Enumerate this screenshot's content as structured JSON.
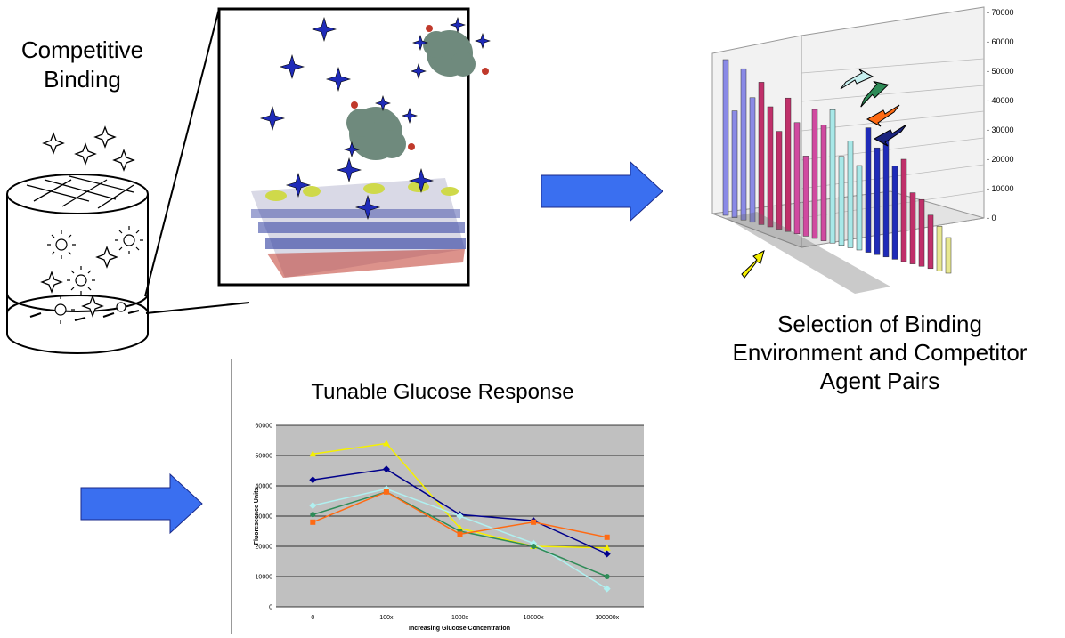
{
  "labels": {
    "competitive_binding": [
      "Competitive",
      "Binding"
    ],
    "selection": [
      "Selection of Binding",
      "Environment and Competitor",
      "Agent Pairs"
    ]
  },
  "colors": {
    "arrow_fill": "#3a6ff0",
    "chart_plot_bg": "#c0c0c0",
    "callout_arrows": [
      "#c8f0f0",
      "#2e8b57",
      "#ff6a13",
      "#1a237e",
      "#f5f000"
    ]
  },
  "icons": [
    "cylinder-well-icon",
    "star-particle-icon",
    "molecular-surface-image",
    "arrow-right-icon",
    "3d-bar-chart-image"
  ],
  "chart_data": [
    {
      "type": "line",
      "title": "Tunable Glucose Response",
      "xlabel": "Increasing Glucose Concentration",
      "ylabel": "Fluorescence Units",
      "categories": [
        "0",
        "100x",
        "1000x",
        "10000x",
        "100000x"
      ],
      "ylim": [
        0,
        60000
      ],
      "yticks": [
        0,
        10000,
        20000,
        30000,
        40000,
        50000,
        60000
      ],
      "grid": true,
      "series": [
        {
          "color": "#f5f000",
          "marker": "triangle",
          "values": [
            50500,
            54000,
            26000,
            20000,
            19500
          ]
        },
        {
          "color": "#00008b",
          "marker": "diamond",
          "values": [
            42000,
            45500,
            30500,
            28500,
            17500
          ]
        },
        {
          "color": "#b0f0f0",
          "marker": "diamond",
          "values": [
            33500,
            39000,
            30000,
            21000,
            6000
          ]
        },
        {
          "color": "#2e8b57",
          "marker": "circle",
          "values": [
            30500,
            38000,
            25000,
            20000,
            10000
          ]
        },
        {
          "color": "#ff6a13",
          "marker": "square",
          "values": [
            28000,
            38000,
            24000,
            28000,
            23000
          ]
        }
      ]
    },
    {
      "type": "bar",
      "subtype": "3d",
      "ylim": [
        0,
        70000
      ],
      "yticks": [
        0,
        10000,
        20000,
        30000,
        40000,
        50000,
        60000,
        70000
      ]
    }
  ]
}
